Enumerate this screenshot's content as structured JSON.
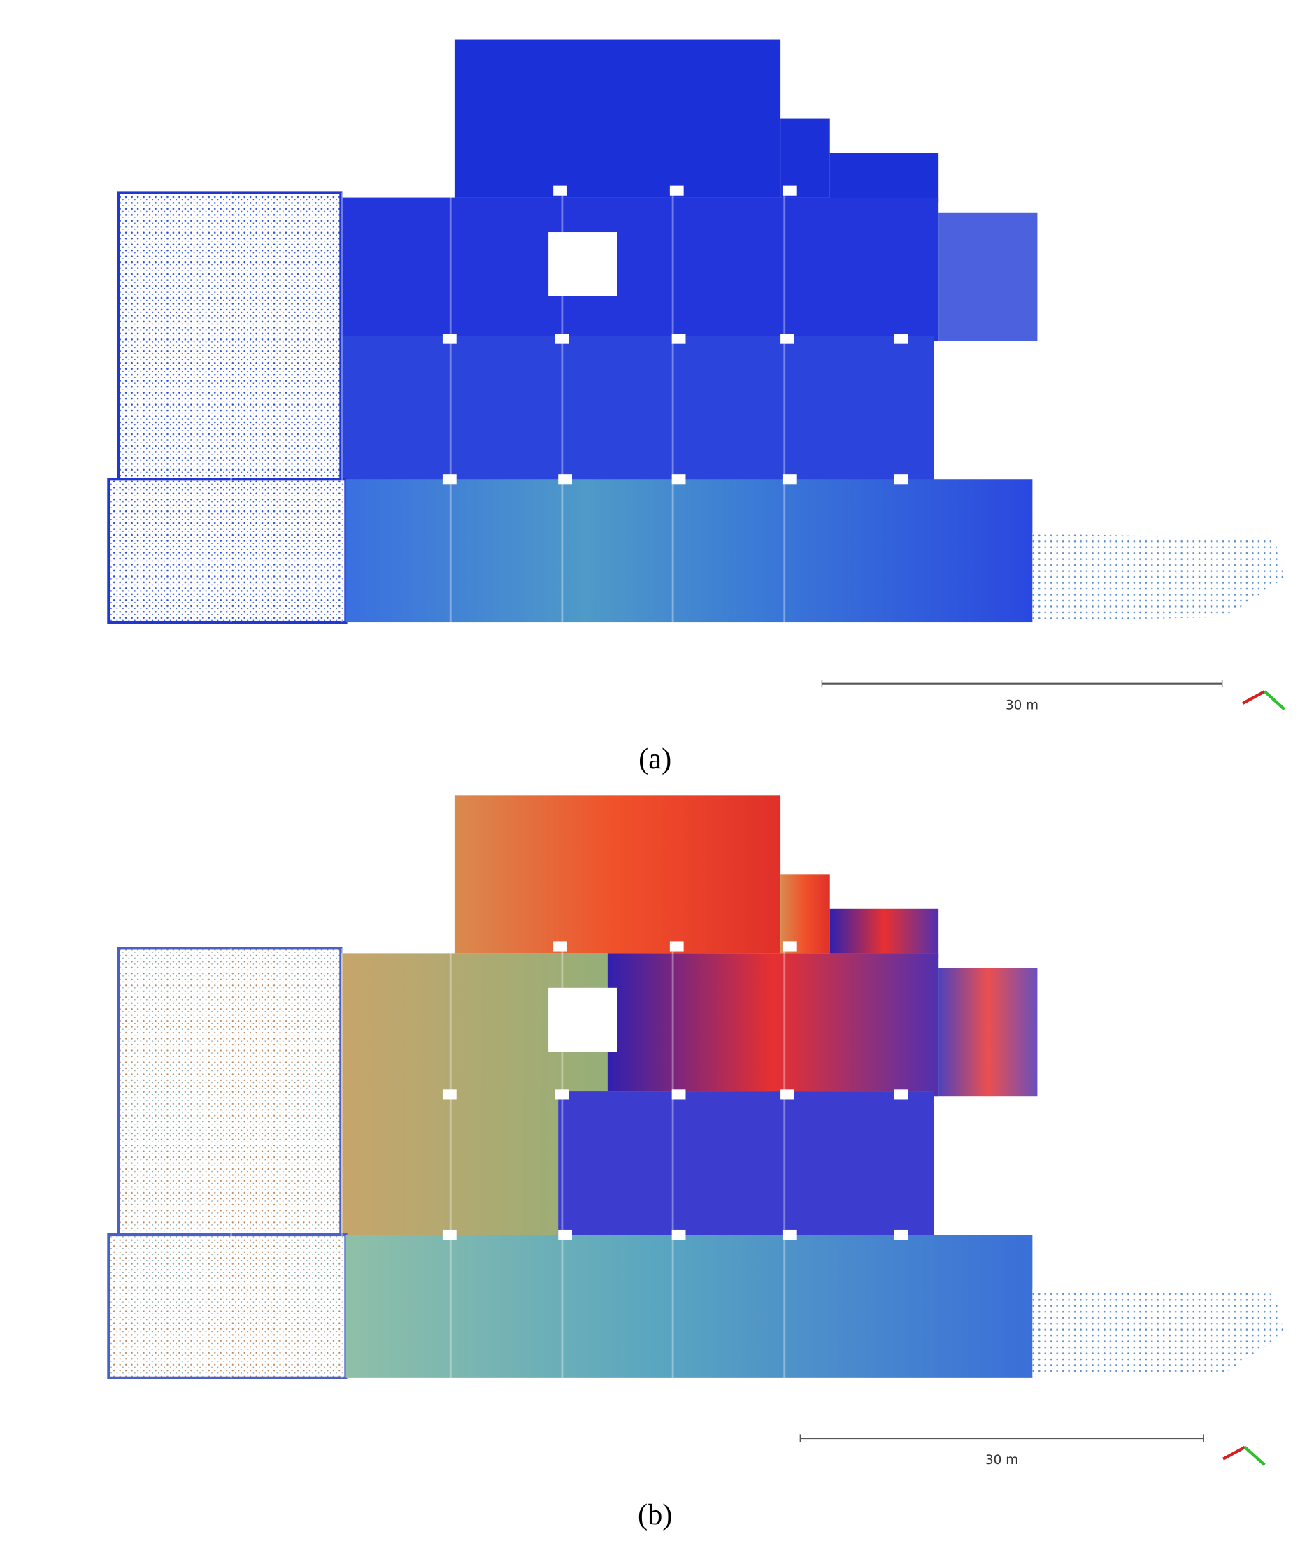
{
  "panels": [
    {
      "scale_label": "30 m",
      "caption": "(a)"
    },
    {
      "scale_label": "30 m",
      "caption": "(b)"
    }
  ]
}
